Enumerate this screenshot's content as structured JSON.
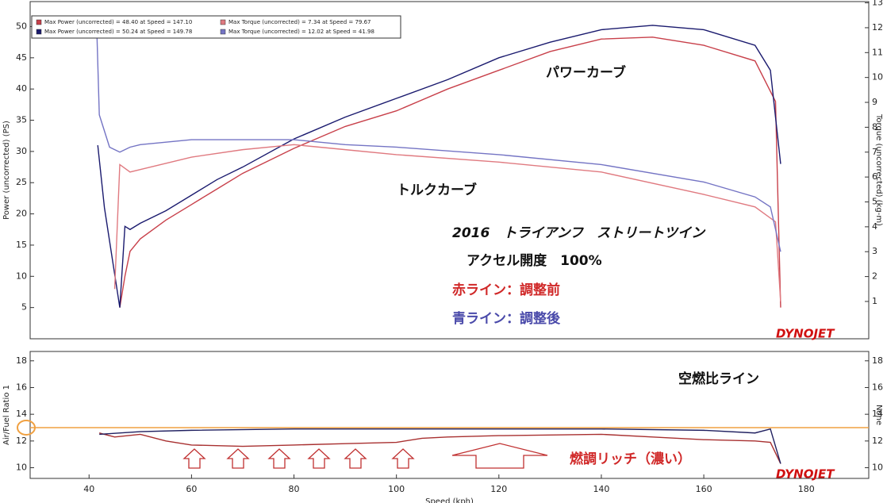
{
  "chart_data": [
    {
      "type": "line",
      "ylabel": "Power (uncorrected) (PS)",
      "y2label": "Torque (uncorrected) (kg-m)",
      "xlim": [
        28.5,
        192.2
      ],
      "ylim": [
        0,
        54
      ],
      "y2lim": [
        -0.5,
        13.05
      ],
      "yticks": [
        5,
        10,
        15,
        20,
        25,
        30,
        35,
        40,
        45,
        50
      ],
      "y2ticks": [
        1,
        2,
        3,
        4,
        5,
        6,
        7,
        8,
        9,
        10,
        11,
        12,
        13
      ],
      "series": [
        {
          "name": "Max Power (uncorrected) = 48.40 at Speed = 147.10",
          "color": "#c8404a",
          "x": [
            46,
            47,
            48,
            50,
            55,
            60,
            65,
            70,
            80,
            90,
            100,
            110,
            120,
            130,
            140,
            150,
            160,
            170,
            174,
            175
          ],
          "values": [
            5,
            10,
            14,
            16,
            19,
            21.5,
            24,
            26.5,
            30.5,
            34,
            36.5,
            40,
            43,
            46,
            48,
            48.3,
            47,
            44.5,
            38,
            5
          ]
        },
        {
          "name": "Max Power (uncorrected) = 50.24 at Speed = 149.78",
          "color": "#1a1a6e",
          "x": [
            41.7,
            43,
            46,
            47,
            48,
            50,
            55,
            60,
            65,
            70,
            80,
            90,
            100,
            110,
            120,
            130,
            140,
            150,
            160,
            170,
            173,
            175
          ],
          "values": [
            31,
            21,
            5,
            18,
            17.5,
            18.5,
            20.5,
            23,
            25.5,
            27.5,
            32,
            35.5,
            38.5,
            41.5,
            45,
            47.5,
            49.5,
            50.2,
            49.5,
            47,
            43,
            28
          ]
        },
        {
          "name": "Max Torque (uncorrected) = 7.34 at Speed = 79.67",
          "color": "#e07a80",
          "axis": "y2",
          "x": [
            45,
            46,
            48,
            50,
            60,
            70,
            80,
            90,
            100,
            120,
            140,
            160,
            170,
            174,
            175
          ],
          "values": [
            1.5,
            6.5,
            6.2,
            6.3,
            6.8,
            7.1,
            7.3,
            7.1,
            6.9,
            6.6,
            6.2,
            5.3,
            4.8,
            4.2,
            1
          ]
        },
        {
          "name": "Max Torque (uncorrected) = 12.02 at Speed = 41.98",
          "color": "#7474c4",
          "axis": "y2",
          "x": [
            41.5,
            42,
            44,
            46,
            48,
            50,
            60,
            70,
            80,
            90,
            100,
            120,
            140,
            160,
            170,
            173,
            175
          ],
          "values": [
            12,
            8.5,
            7.2,
            7,
            7.2,
            7.3,
            7.5,
            7.5,
            7.5,
            7.3,
            7.2,
            6.9,
            6.5,
            5.8,
            5.2,
            4.8,
            3
          ]
        }
      ],
      "annotations": [
        "パワーカーブ",
        "トルクカーブ",
        "2016　トライアンフ　ストリートツイン",
        "アクセル開度　100%",
        "赤ライン：調整前",
        "青ライン：調整後",
        "DYNOJET"
      ]
    },
    {
      "type": "line",
      "ylabel": "Air/Fuel Ratio 1",
      "y2label": "None",
      "xlabel": "Speed (kph)",
      "xlim": [
        28.5,
        192.2
      ],
      "ylim": [
        9.2,
        18.7
      ],
      "y2lim": [
        9.2,
        18.7
      ],
      "xticks": [
        40,
        60,
        80,
        100,
        120,
        140,
        160,
        180
      ],
      "yticks": [
        10,
        12,
        14,
        16,
        18
      ],
      "y2ticks": [
        10,
        12,
        14,
        16,
        18
      ],
      "hline": 13,
      "hline_color": "#f0a040",
      "series": [
        {
          "color": "#a83030",
          "x": [
            42,
            45,
            50,
            55,
            60,
            70,
            80,
            90,
            100,
            105,
            110,
            120,
            140,
            150,
            160,
            170,
            173,
            175
          ],
          "values": [
            12.6,
            12.3,
            12.5,
            12,
            11.7,
            11.6,
            11.7,
            11.8,
            11.9,
            12.2,
            12.3,
            12.4,
            12.5,
            12.3,
            12.1,
            12,
            11.9,
            10.3
          ]
        },
        {
          "color": "#202060",
          "x": [
            42,
            50,
            60,
            80,
            100,
            120,
            140,
            160,
            170,
            173,
            175
          ],
          "values": [
            12.5,
            12.7,
            12.8,
            12.9,
            12.9,
            12.9,
            12.9,
            12.8,
            12.6,
            12.9,
            10.3
          ]
        }
      ],
      "annotations": [
        "空燃比ライン",
        "燃調リッチ（濃い）",
        "DYNOJET"
      ]
    }
  ]
}
